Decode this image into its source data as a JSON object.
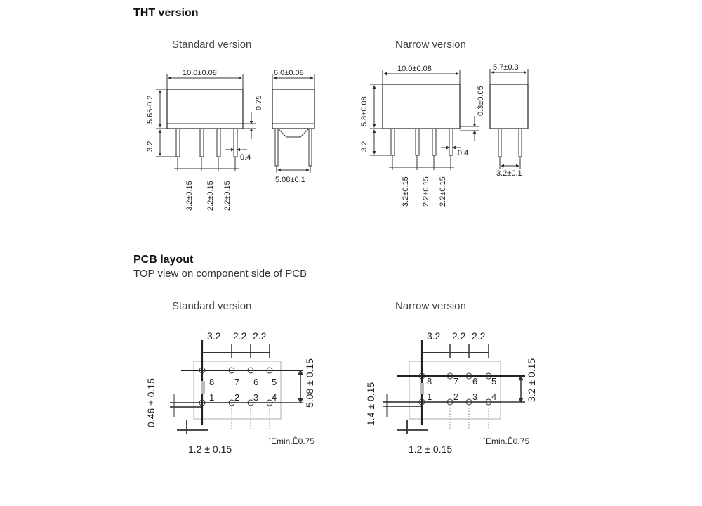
{
  "tht": {
    "heading": "THT version",
    "standard": {
      "label": "Standard version",
      "body_width": "10.0±0.08",
      "body_height": "5.65-0.2",
      "pin_length": "3.2",
      "standoff": "0.75",
      "pin_thickness": "0.4",
      "side_width": "6.0±0.08",
      "pin_row_spacing": "5.08±0.1",
      "pitch_1": "3.2±0.15",
      "pitch_2": "2.2±0.15",
      "pitch_3": "2.2±0.15"
    },
    "narrow": {
      "label": "Narrow version",
      "body_width": "10.0±0.08",
      "body_height": "5.8±0.08",
      "pin_length": "3.2",
      "standoff": "0.3±0.05",
      "pin_thickness": "0.4",
      "side_width": "5.7±0.3",
      "pin_row_spacing": "3.2±0.1",
      "pitch_1": "3.2±0.15",
      "pitch_2": "2.2±0.15",
      "pitch_3": "2.2±0.15"
    }
  },
  "pcb": {
    "heading": "PCB layout",
    "subheading": "TOP view on component side of PCB",
    "standard": {
      "label": "Standard version",
      "top_1": "3.2",
      "top_2": "2.2",
      "top_3": "2.2",
      "row_spacing": "5.08 ± 0.15",
      "pad_offset": "0.46 ± 0.15",
      "pad_width": "1.2 ± 0.15",
      "hole": "ˆEmin.Ê0.75",
      "pins_top": [
        "8",
        "7",
        "6",
        "5"
      ],
      "pins_bottom": [
        "1",
        "2",
        "3",
        "4"
      ]
    },
    "narrow": {
      "label": "Narrow version",
      "top_1": "3.2",
      "top_2": "2.2",
      "top_3": "2.2",
      "row_spacing": "3.2 ± 0.15",
      "pad_offset": "1.4 ± 0.15",
      "pad_width": "1.2 ± 0.15",
      "hole": "ˆEmin.Ê0.75",
      "pins_top": [
        "8",
        "7",
        "6",
        "5"
      ],
      "pins_bottom": [
        "1",
        "2",
        "3",
        "4"
      ]
    }
  }
}
